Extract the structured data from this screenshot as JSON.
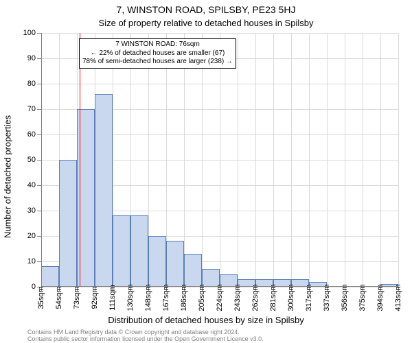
{
  "title": "7, WINSTON ROAD, SPILSBY, PE23 5HJ",
  "subtitle": "Size of property relative to detached houses in Spilsby",
  "y_axis_label": "Number of detached properties",
  "x_axis_label": "Distribution of detached houses by size in Spilsby",
  "footer_line1": "Contains HM Land Registry data © Crown copyright and database right 2024.",
  "footer_line2": "Contains public sector information licensed under the Open Government Licence v3.0.",
  "chart": {
    "type": "histogram",
    "ylim": [
      0,
      100
    ],
    "ytick_step": 10,
    "x_tick_labels": [
      "35sqm",
      "54sqm",
      "73sqm",
      "92sqm",
      "111sqm",
      "130sqm",
      "148sqm",
      "167sqm",
      "186sqm",
      "205sqm",
      "224sqm",
      "243sqm",
      "262sqm",
      "281sqm",
      "300sqm",
      "317sqm",
      "337sqm",
      "356sqm",
      "375sqm",
      "394sqm",
      "413sqm"
    ],
    "bars": [
      8,
      50,
      70,
      76,
      28,
      28,
      20,
      18,
      13,
      7,
      5,
      3,
      3,
      3,
      3,
      2,
      0,
      0,
      0,
      1
    ],
    "bar_fill": "#c9d8ef",
    "bar_border": "#5b7fb3",
    "marker_value_sqm": 76,
    "marker_color": "#ff0000",
    "grid_color": "#d9d9d9",
    "background_color": "#ffffff",
    "tick_font_size": 11,
    "label_font_size": 13,
    "title_font_size": 14,
    "annotation": {
      "line1": "7 WINSTON ROAD: 76sqm",
      "line2": "← 22% of detached houses are smaller (67)",
      "line3": "78% of semi-detached houses are larger (238) →",
      "border_color": "#000000",
      "bg_color": "#ffffff",
      "font_size": 10
    }
  }
}
